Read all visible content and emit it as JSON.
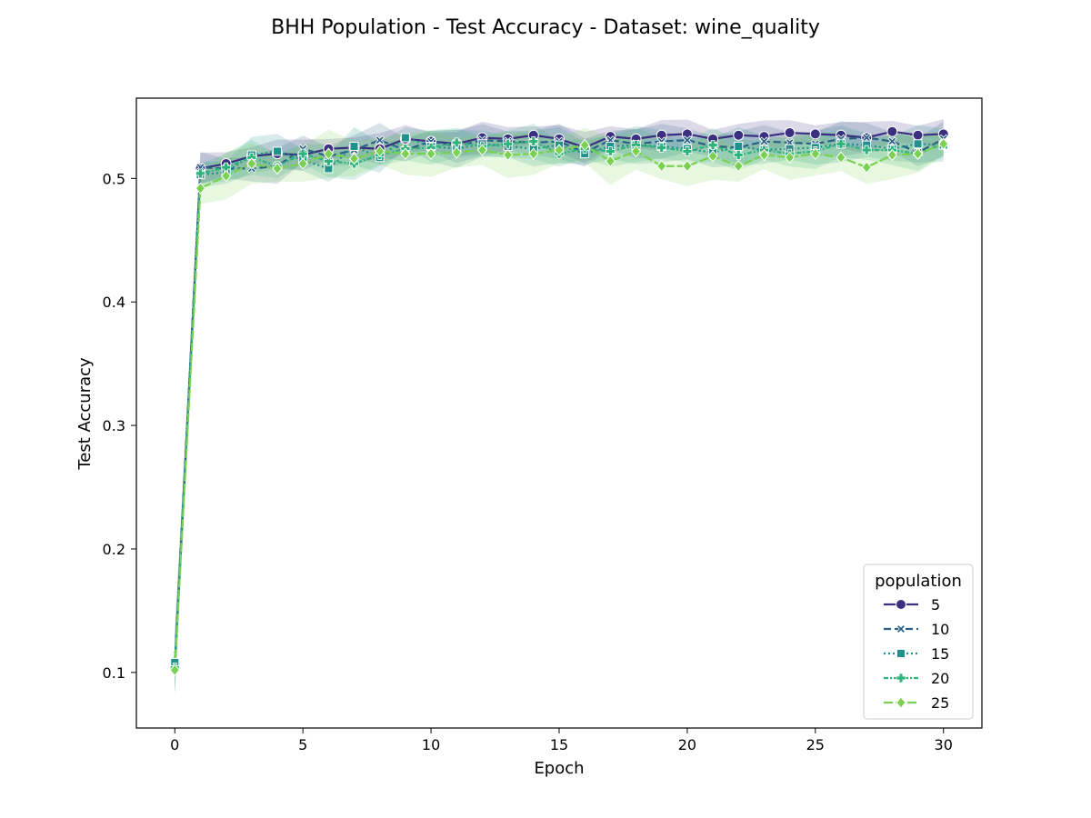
{
  "chart_data": {
    "type": "line",
    "title": "BHH Population - Test Accuracy - Dataset: wine_quality",
    "xlabel": "Epoch",
    "ylabel": "Test Accuracy",
    "xlim": [
      -1.5,
      31.5
    ],
    "ylim": [
      0.055,
      0.565
    ],
    "xticks": [
      0,
      5,
      10,
      15,
      20,
      25,
      30
    ],
    "yticks": [
      0.1,
      0.2,
      0.3,
      0.4,
      0.5
    ],
    "grid": false,
    "legend": {
      "title": "population",
      "placement": "lower-right"
    },
    "x": [
      0,
      1,
      2,
      3,
      4,
      5,
      6,
      7,
      8,
      9,
      10,
      11,
      12,
      13,
      14,
      15,
      16,
      17,
      18,
      19,
      20,
      21,
      22,
      23,
      24,
      25,
      26,
      27,
      28,
      29,
      30
    ],
    "series": [
      {
        "name": "5",
        "color": "#3b2f80",
        "marker": "circle",
        "dash": "solid",
        "values": [
          0.105,
          0.508,
          0.512,
          0.518,
          0.52,
          0.519,
          0.524,
          0.525,
          0.524,
          0.532,
          0.53,
          0.528,
          0.533,
          0.532,
          0.535,
          0.532,
          0.525,
          0.534,
          0.532,
          0.535,
          0.536,
          0.532,
          0.535,
          0.534,
          0.537,
          0.536,
          0.535,
          0.533,
          0.538,
          0.535,
          0.536
        ],
        "band": 0.01
      },
      {
        "name": "10",
        "color": "#2a5f86",
        "marker": "x",
        "dash": "dashed",
        "values": [
          0.107,
          0.509,
          0.508,
          0.508,
          0.51,
          0.524,
          0.518,
          0.523,
          0.531,
          0.523,
          0.53,
          0.526,
          0.531,
          0.53,
          0.529,
          0.53,
          0.521,
          0.531,
          0.528,
          0.53,
          0.531,
          0.526,
          0.525,
          0.53,
          0.529,
          0.528,
          0.532,
          0.533,
          0.53,
          0.521,
          0.532
        ],
        "band": 0.011
      },
      {
        "name": "15",
        "color": "#21918c",
        "marker": "square",
        "dash": "dotted",
        "values": [
          0.108,
          0.503,
          0.505,
          0.519,
          0.522,
          0.515,
          0.508,
          0.526,
          0.517,
          0.533,
          0.526,
          0.524,
          0.528,
          0.526,
          0.524,
          0.527,
          0.52,
          0.526,
          0.527,
          0.526,
          0.524,
          0.521,
          0.526,
          0.523,
          0.524,
          0.525,
          0.528,
          0.527,
          0.524,
          0.528,
          0.527
        ],
        "band": 0.012
      },
      {
        "name": "20",
        "color": "#2eb37c",
        "marker": "plus",
        "dash": "dashdot",
        "values": [
          0.104,
          0.504,
          0.509,
          0.517,
          0.51,
          0.52,
          0.514,
          0.512,
          0.519,
          0.524,
          0.525,
          0.529,
          0.526,
          0.528,
          0.53,
          0.52,
          0.524,
          0.522,
          0.527,
          0.525,
          0.522,
          0.527,
          0.519,
          0.523,
          0.52,
          0.522,
          0.528,
          0.523,
          0.523,
          0.52,
          0.528
        ],
        "band": 0.011
      },
      {
        "name": "25",
        "color": "#7ad151",
        "marker": "diamond",
        "dash": "longdash",
        "values": [
          0.102,
          0.492,
          0.502,
          0.512,
          0.508,
          0.512,
          0.52,
          0.516,
          0.522,
          0.52,
          0.52,
          0.521,
          0.523,
          0.519,
          0.52,
          0.523,
          0.527,
          0.514,
          0.522,
          0.51,
          0.51,
          0.518,
          0.51,
          0.519,
          0.517,
          0.52,
          0.517,
          0.509,
          0.519,
          0.52,
          0.528
        ],
        "band": 0.015
      }
    ]
  }
}
